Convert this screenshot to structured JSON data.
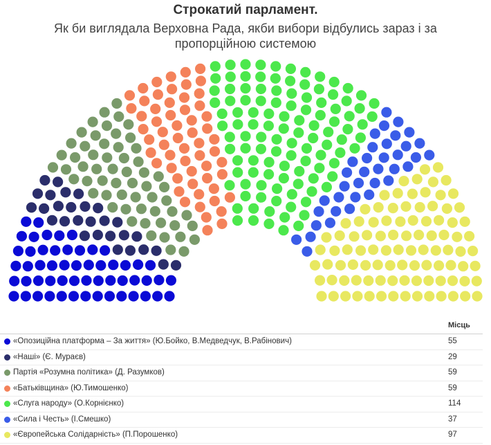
{
  "title": "Строкатий парламент.",
  "subtitle": "Як би виглядала Верховна Рада, якби вибори відбулись зараз і за пропорційною системою",
  "legend_header": "Місць",
  "chart_data": {
    "type": "parliament",
    "title": "Строкатий парламент.",
    "subtitle": "Як би виглядала Верховна Рада, якби вибори відбулись зараз і за пропорційною системою",
    "value_label": "Місць",
    "series": [
      {
        "name": "«Опозиційна платформа – За життя» (Ю.Бойко, В.Медведчук, В.Рабінович)",
        "value": 55,
        "color": "#0a0ad6"
      },
      {
        "name": "«Наші» (Є. Мураєв)",
        "value": 29,
        "color": "#2b2e6b"
      },
      {
        "name": "Партія «Розумна політика» (Д. Разумков)",
        "value": 59,
        "color": "#7a9a6a"
      },
      {
        "name": "«Батьківщина» (Ю.Тимошенко)",
        "value": 59,
        "color": "#f4825a"
      },
      {
        "name": "«Слуга народу» (О.Корнієнко)",
        "value": 114,
        "color": "#4ce84c"
      },
      {
        "name": "«Сила і Честь» (І.Смешко)",
        "value": 37,
        "color": "#3a5ce8"
      },
      {
        "name": "«Європейська Солідарність» (П.Порошенко)",
        "value": 97,
        "color": "#e8e860"
      }
    ]
  }
}
